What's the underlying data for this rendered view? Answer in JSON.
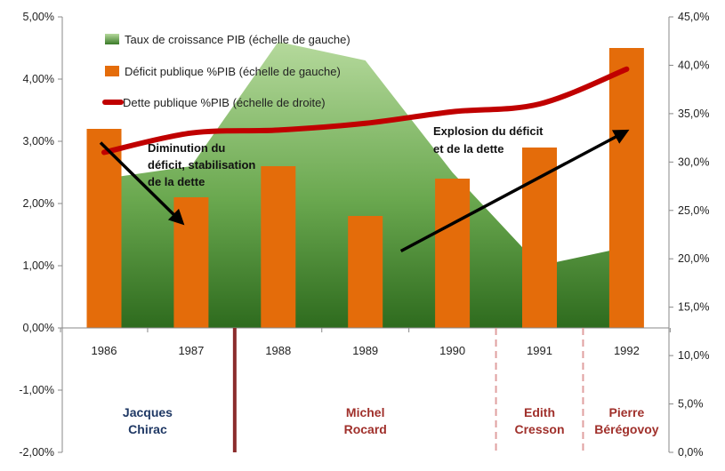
{
  "chart_data": {
    "type": "bar",
    "categories": [
      "1986",
      "1987",
      "1988",
      "1989",
      "1990",
      "1991",
      "1992"
    ],
    "series": [
      {
        "name": "Taux de croissance PIB (échelle de gauche)",
        "kind": "area",
        "axis": "left",
        "values": [
          2.4,
          2.6,
          4.6,
          4.3,
          2.5,
          1.0,
          1.3
        ]
      },
      {
        "name": "Déficit publique %PIB (échelle de gauche)",
        "kind": "bar",
        "axis": "left",
        "values": [
          3.2,
          2.1,
          2.6,
          1.8,
          2.4,
          2.9,
          4.5
        ]
      },
      {
        "name": "Dette publique %PIB (échelle de droite)",
        "kind": "line",
        "axis": "right",
        "values": [
          31.0,
          33.0,
          33.3,
          34.0,
          35.2,
          36.0,
          39.6
        ]
      }
    ],
    "y_left": {
      "ylim": [
        -2,
        5
      ],
      "ticks": [
        "5,00%",
        "4,00%",
        "3,00%",
        "2,00%",
        "1,00%",
        "0,00%",
        "-1,00%",
        "-2,00%"
      ]
    },
    "y_right": {
      "ylim": [
        0,
        45
      ],
      "ticks": [
        "45,0%",
        "40,0%",
        "35,0%",
        "30,0%",
        "25,0%",
        "20,0%",
        "15,0%",
        "10,0%",
        "5,0%",
        "0,0%"
      ]
    },
    "legend_position": "top-left",
    "grid": false,
    "annotations": [
      {
        "lines": [
          "Diminution du",
          "déficit, stabilisation",
          "de la dette"
        ],
        "arrow_from": [
          "1986",
          32.0
        ],
        "arrow_to": [
          "1987",
          23.7
        ]
      },
      {
        "lines": [
          "Explosion du déficit",
          "et de la dette"
        ],
        "arrow_from": [
          "1989",
          20.8
        ],
        "arrow_to": [
          "1992",
          33.2
        ]
      }
    ],
    "periods": [
      {
        "label_lines": [
          "Jacques",
          "Chirac"
        ],
        "from": "1986",
        "to": "1987",
        "color": "#1f3864"
      },
      {
        "label_lines": [
          "Michel",
          "Rocard"
        ],
        "from": "1988",
        "to": "1990",
        "color": "#a0302b"
      },
      {
        "label_lines": [
          "Edith",
          "Cresson"
        ],
        "from": "1991",
        "to": "1991",
        "color": "#a0302b"
      },
      {
        "label_lines": [
          "Pierre",
          "Bérégovoy"
        ],
        "from": "1992",
        "to": "1992",
        "color": "#a0302b"
      }
    ],
    "colors": {
      "bar": "#e46c0a",
      "line": "#c00000",
      "area_top": "#a9d18e",
      "area_bottom": "#2e6b1e",
      "separator_solid": "#8b2c2c",
      "separator_dashed": "#e0a0a0"
    }
  }
}
